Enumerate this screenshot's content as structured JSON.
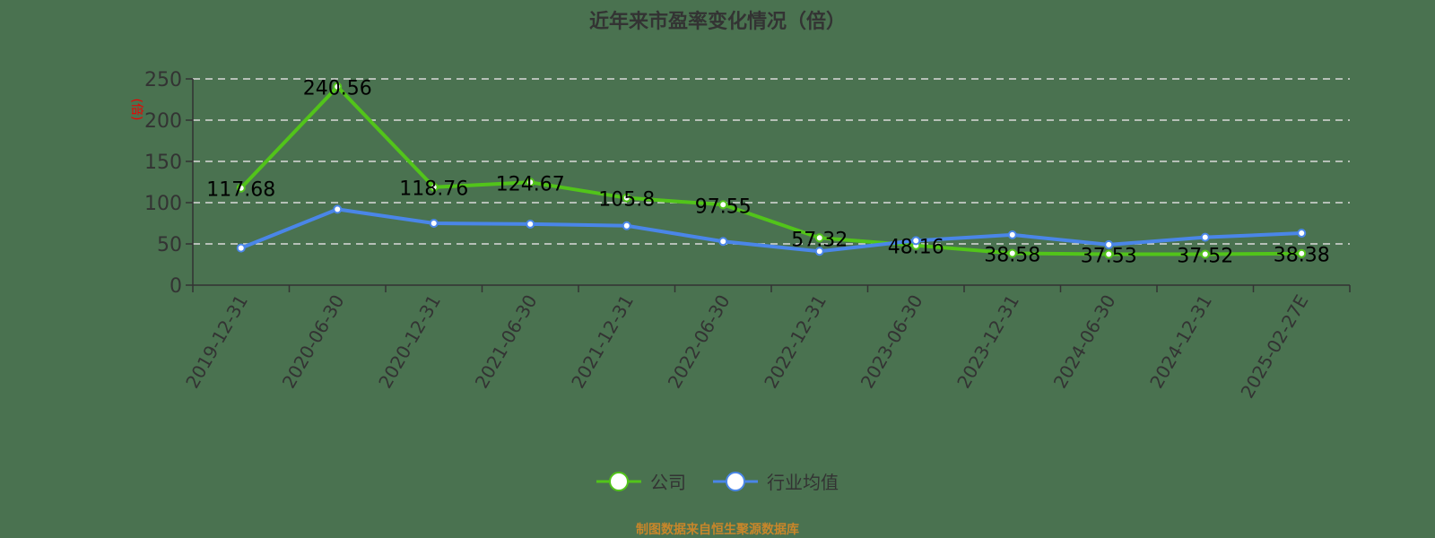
{
  "title": "近年来市盈率变化情况（倍）",
  "footer": "制图数据来自恒生聚源数据库",
  "y_axis_label": "(倍)",
  "legend": [
    {
      "label": "公司",
      "color": "#52c41a"
    },
    {
      "label": "行业均值",
      "color": "#4a86e8"
    }
  ],
  "chart_data": {
    "type": "line",
    "title": "近年来市盈率变化情况（倍）",
    "xlabel": "",
    "ylabel": "(倍)",
    "ylim": [
      0,
      250
    ],
    "yticks": [
      0,
      50,
      100,
      150,
      200,
      250
    ],
    "grid": "horizontal dashed",
    "legend_position": "bottom",
    "categories": [
      "2019-12-31",
      "2020-06-30",
      "2020-12-31",
      "2021-06-30",
      "2021-12-31",
      "2022-06-30",
      "2022-12-31",
      "2023-06-30",
      "2023-12-31",
      "2024-06-30",
      "2024-12-31",
      "2025-02-27E"
    ],
    "series": [
      {
        "name": "公司",
        "color": "#52c41a",
        "values": [
          117.68,
          240.56,
          118.76,
          124.67,
          105.8,
          97.55,
          57.32,
          48.16,
          38.58,
          37.53,
          37.52,
          38.38
        ],
        "labels": [
          "117.68",
          "240.56",
          "118.76",
          "124.67",
          "105.8",
          "97.55",
          "57.32",
          "48.16",
          "38.58",
          "37.53",
          "37.52",
          "38.38"
        ]
      },
      {
        "name": "行业均值",
        "color": "#4a86e8",
        "values": [
          45,
          92,
          75,
          74,
          72,
          53,
          41,
          54,
          61,
          49,
          58,
          63
        ]
      }
    ]
  }
}
